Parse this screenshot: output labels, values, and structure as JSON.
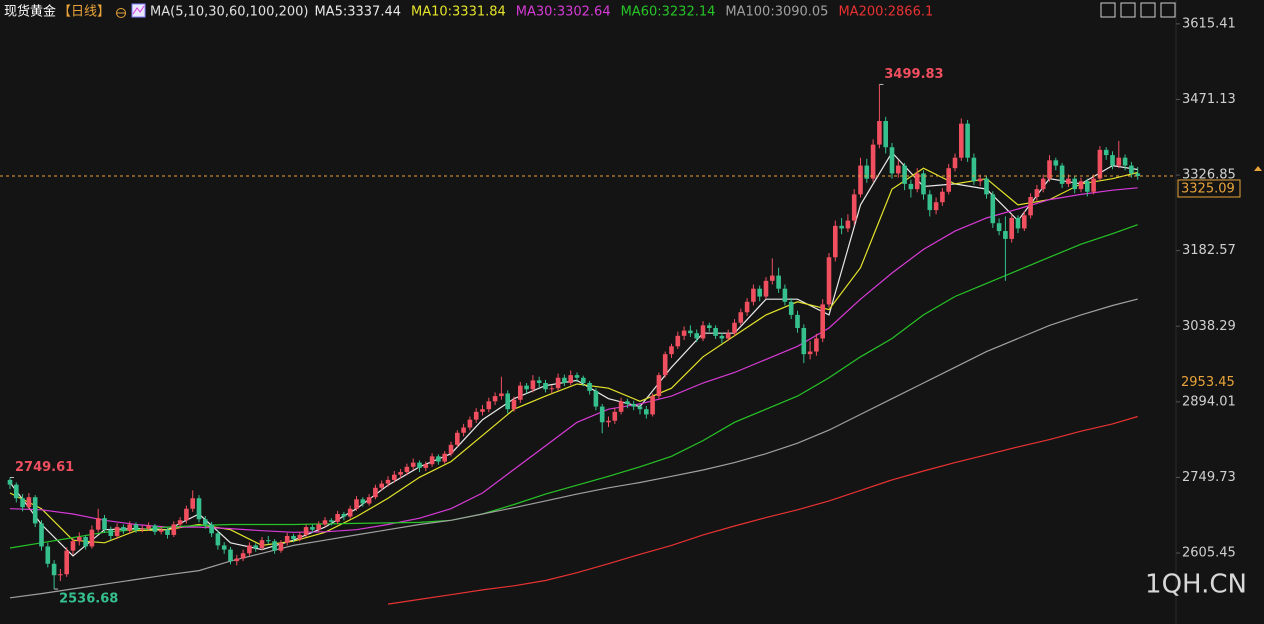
{
  "chart_data": {
    "type": "candlestick",
    "title": "现货黄金",
    "period": "【日线】",
    "ma_label": "MA(5,10,30,60,100,200)",
    "ylim": [
      2470,
      3661
    ],
    "yticks": [
      3615.41,
      3471.13,
      3326.85,
      3182.57,
      3038.29,
      2894.01,
      2749.73,
      2605.45
    ],
    "up_color": "#ef4f5f",
    "down_color": "#35c08e",
    "current_price": 3325.09,
    "marker_price": 2953.45,
    "annotations": [
      3499.83,
      2749.61,
      2536.68
    ],
    "watermark": "1QH.CN",
    "candles": [
      [
        2745,
        2749.61,
        2728,
        2736
      ],
      [
        2736,
        2740,
        2702,
        2710
      ],
      [
        2710,
        2718,
        2685,
        2693
      ],
      [
        2693,
        2720,
        2688,
        2712
      ],
      [
        2712,
        2716,
        2655,
        2662
      ],
      [
        2662,
        2668,
        2610,
        2618
      ],
      [
        2618,
        2625,
        2578,
        2585
      ],
      [
        2585,
        2592,
        2536.68,
        2563
      ],
      [
        2563,
        2575,
        2552,
        2565
      ],
      [
        2565,
        2616,
        2560,
        2610
      ],
      [
        2610,
        2634,
        2602,
        2628
      ],
      [
        2628,
        2645,
        2620,
        2636
      ],
      [
        2636,
        2640,
        2612,
        2618
      ],
      [
        2618,
        2658,
        2614,
        2650
      ],
      [
        2650,
        2690,
        2645,
        2672
      ],
      [
        2672,
        2678,
        2644,
        2650
      ],
      [
        2650,
        2656,
        2630,
        2638
      ],
      [
        2638,
        2662,
        2632,
        2655
      ],
      [
        2655,
        2660,
        2642,
        2648
      ],
      [
        2648,
        2666,
        2643,
        2660
      ],
      [
        2660,
        2664,
        2644,
        2650
      ],
      [
        2650,
        2658,
        2645,
        2652
      ],
      [
        2652,
        2664,
        2648,
        2658
      ],
      [
        2658,
        2661,
        2640,
        2646
      ],
      [
        2646,
        2656,
        2641,
        2650
      ],
      [
        2650,
        2654,
        2633,
        2640
      ],
      [
        2640,
        2666,
        2636,
        2660
      ],
      [
        2660,
        2674,
        2654,
        2668
      ],
      [
        2668,
        2696,
        2662,
        2690
      ],
      [
        2690,
        2725,
        2684,
        2710
      ],
      [
        2710,
        2716,
        2664,
        2670
      ],
      [
        2670,
        2676,
        2652,
        2660
      ],
      [
        2660,
        2665,
        2636,
        2643
      ],
      [
        2643,
        2648,
        2612,
        2620
      ],
      [
        2620,
        2626,
        2604,
        2612
      ],
      [
        2612,
        2617,
        2584,
        2590
      ],
      [
        2590,
        2602,
        2582,
        2595
      ],
      [
        2595,
        2612,
        2590,
        2605
      ],
      [
        2605,
        2626,
        2600,
        2620
      ],
      [
        2620,
        2624,
        2608,
        2615
      ],
      [
        2615,
        2636,
        2611,
        2630
      ],
      [
        2630,
        2638,
        2622,
        2628
      ],
      [
        2628,
        2632,
        2604,
        2610
      ],
      [
        2610,
        2630,
        2606,
        2625
      ],
      [
        2625,
        2644,
        2620,
        2638
      ],
      [
        2638,
        2642,
        2626,
        2632
      ],
      [
        2632,
        2646,
        2628,
        2640
      ],
      [
        2640,
        2660,
        2636,
        2655
      ],
      [
        2655,
        2660,
        2644,
        2650
      ],
      [
        2650,
        2666,
        2646,
        2660
      ],
      [
        2660,
        2674,
        2655,
        2668
      ],
      [
        2668,
        2672,
        2658,
        2665
      ],
      [
        2665,
        2686,
        2661,
        2680
      ],
      [
        2680,
        2684,
        2668,
        2675
      ],
      [
        2675,
        2696,
        2671,
        2690
      ],
      [
        2690,
        2714,
        2686,
        2708
      ],
      [
        2708,
        2712,
        2694,
        2700
      ],
      [
        2700,
        2718,
        2696,
        2712
      ],
      [
        2712,
        2736,
        2708,
        2730
      ],
      [
        2730,
        2744,
        2725,
        2738
      ],
      [
        2738,
        2752,
        2732,
        2745
      ],
      [
        2745,
        2762,
        2740,
        2755
      ],
      [
        2755,
        2766,
        2748,
        2760
      ],
      [
        2760,
        2776,
        2754,
        2770
      ],
      [
        2770,
        2786,
        2764,
        2778
      ],
      [
        2778,
        2782,
        2760,
        2768
      ],
      [
        2768,
        2780,
        2762,
        2775
      ],
      [
        2775,
        2796,
        2770,
        2790
      ],
      [
        2790,
        2794,
        2774,
        2780
      ],
      [
        2780,
        2800,
        2776,
        2795
      ],
      [
        2795,
        2818,
        2790,
        2812
      ],
      [
        2812,
        2840,
        2808,
        2835
      ],
      [
        2835,
        2852,
        2828,
        2845
      ],
      [
        2845,
        2866,
        2840,
        2860
      ],
      [
        2860,
        2882,
        2854,
        2875
      ],
      [
        2875,
        2888,
        2868,
        2880
      ],
      [
        2880,
        2902,
        2874,
        2895
      ],
      [
        2895,
        2912,
        2888,
        2905
      ],
      [
        2905,
        2942,
        2898,
        2910
      ],
      [
        2910,
        2916,
        2872,
        2880
      ],
      [
        2880,
        2904,
        2875,
        2898
      ],
      [
        2898,
        2932,
        2892,
        2925
      ],
      [
        2925,
        2930,
        2910,
        2918
      ],
      [
        2918,
        2945,
        2912,
        2935
      ],
      [
        2935,
        2942,
        2922,
        2930
      ],
      [
        2930,
        2936,
        2912,
        2918
      ],
      [
        2918,
        2926,
        2910,
        2920
      ],
      [
        2920,
        2948,
        2915,
        2940
      ],
      [
        2940,
        2946,
        2924,
        2930
      ],
      [
        2930,
        2954,
        2926,
        2945
      ],
      [
        2945,
        2950,
        2932,
        2940
      ],
      [
        2940,
        2944,
        2924,
        2930
      ],
      [
        2930,
        2934,
        2908,
        2915
      ],
      [
        2915,
        2920,
        2878,
        2885
      ],
      [
        2885,
        2890,
        2834,
        2855
      ],
      [
        2855,
        2866,
        2846,
        2858
      ],
      [
        2858,
        2882,
        2852,
        2875
      ],
      [
        2875,
        2902,
        2870,
        2895
      ],
      [
        2895,
        2900,
        2882,
        2890
      ],
      [
        2890,
        2896,
        2878,
        2885
      ],
      [
        2885,
        2890,
        2870,
        2880
      ],
      [
        2880,
        2886,
        2862,
        2870
      ],
      [
        2870,
        2910,
        2866,
        2905
      ],
      [
        2905,
        2950,
        2900,
        2945
      ],
      [
        2945,
        2990,
        2940,
        2985
      ],
      [
        2985,
        3005,
        2978,
        3000
      ],
      [
        3000,
        3028,
        2995,
        3020
      ],
      [
        3020,
        3038,
        3012,
        3030
      ],
      [
        3030,
        3040,
        3018,
        3025
      ],
      [
        3025,
        3032,
        3008,
        3015
      ],
      [
        3015,
        3048,
        3010,
        3040
      ],
      [
        3040,
        3045,
        3028,
        3035
      ],
      [
        3035,
        3040,
        3014,
        3020
      ],
      [
        3020,
        3026,
        3006,
        3015
      ],
      [
        3015,
        3032,
        3010,
        3025
      ],
      [
        3025,
        3052,
        3020,
        3045
      ],
      [
        3045,
        3072,
        3040,
        3065
      ],
      [
        3065,
        3092,
        3058,
        3085
      ],
      [
        3085,
        3118,
        3078,
        3110
      ],
      [
        3110,
        3116,
        3086,
        3095
      ],
      [
        3095,
        3132,
        3090,
        3125
      ],
      [
        3125,
        3168,
        3118,
        3135
      ],
      [
        3135,
        3150,
        3102,
        3110
      ],
      [
        3110,
        3118,
        3078,
        3085
      ],
      [
        3085,
        3092,
        3052,
        3060
      ],
      [
        3060,
        3068,
        3026,
        3035
      ],
      [
        3035,
        3042,
        2968,
        2985
      ],
      [
        2985,
        3010,
        2975,
        2990
      ],
      [
        2990,
        3024,
        2982,
        3015
      ],
      [
        3015,
        3090,
        3008,
        3080
      ],
      [
        3080,
        3178,
        3074,
        3170
      ],
      [
        3170,
        3240,
        3162,
        3230
      ],
      [
        3230,
        3245,
        3214,
        3225
      ],
      [
        3225,
        3252,
        3218,
        3240
      ],
      [
        3240,
        3300,
        3232,
        3290
      ],
      [
        3290,
        3360,
        3284,
        3345
      ],
      [
        3345,
        3358,
        3312,
        3320
      ],
      [
        3320,
        3395,
        3314,
        3385
      ],
      [
        3385,
        3499.83,
        3378,
        3430
      ],
      [
        3430,
        3438,
        3368,
        3380
      ],
      [
        3380,
        3388,
        3320,
        3330
      ],
      [
        3330,
        3355,
        3322,
        3345
      ],
      [
        3345,
        3350,
        3298,
        3310
      ],
      [
        3310,
        3318,
        3284,
        3300
      ],
      [
        3300,
        3340,
        3294,
        3330
      ],
      [
        3330,
        3336,
        3280,
        3290
      ],
      [
        3290,
        3298,
        3248,
        3260
      ],
      [
        3260,
        3284,
        3252,
        3275
      ],
      [
        3275,
        3302,
        3268,
        3295
      ],
      [
        3295,
        3348,
        3290,
        3340
      ],
      [
        3340,
        3368,
        3334,
        3360
      ],
      [
        3360,
        3435,
        3354,
        3425
      ],
      [
        3425,
        3432,
        3352,
        3360
      ],
      [
        3360,
        3368,
        3308,
        3315
      ],
      [
        3315,
        3328,
        3306,
        3320
      ],
      [
        3320,
        3326,
        3282,
        3290
      ],
      [
        3290,
        3296,
        3226,
        3235
      ],
      [
        3235,
        3244,
        3212,
        3220
      ],
      [
        3220,
        3248,
        3125,
        3205
      ],
      [
        3205,
        3252,
        3198,
        3245
      ],
      [
        3245,
        3250,
        3216,
        3225
      ],
      [
        3225,
        3258,
        3220,
        3250
      ],
      [
        3250,
        3292,
        3244,
        3285
      ],
      [
        3285,
        3308,
        3278,
        3300
      ],
      [
        3300,
        3328,
        3294,
        3320
      ],
      [
        3320,
        3365,
        3314,
        3355
      ],
      [
        3355,
        3360,
        3336,
        3345
      ],
      [
        3345,
        3350,
        3302,
        3310
      ],
      [
        3310,
        3328,
        3304,
        3320
      ],
      [
        3320,
        3326,
        3292,
        3300
      ],
      [
        3300,
        3322,
        3294,
        3315
      ],
      [
        3315,
        3320,
        3286,
        3295
      ],
      [
        3295,
        3328,
        3290,
        3320
      ],
      [
        3320,
        3382,
        3316,
        3375
      ],
      [
        3375,
        3380,
        3356,
        3365
      ],
      [
        3365,
        3372,
        3338,
        3345
      ],
      [
        3345,
        3392,
        3340,
        3360
      ],
      [
        3360,
        3366,
        3336,
        3345
      ],
      [
        3345,
        3352,
        3322,
        3330
      ],
      [
        3330,
        3342,
        3318,
        3325.09
      ]
    ],
    "ma_x": [
      0,
      5,
      10,
      15,
      20,
      25,
      30,
      35,
      40,
      45,
      50,
      55,
      60,
      65,
      70,
      75,
      80,
      85,
      90,
      95,
      100,
      105,
      110,
      115,
      120,
      125,
      130,
      135,
      140,
      145,
      150,
      155,
      160,
      165,
      170,
      175,
      179
    ],
    "series": [
      {
        "name": "MA5:3337.44",
        "color": "#e8e8e8",
        "values": [
          2740,
          2660,
          2600,
          2650,
          2652,
          2650,
          2680,
          2625,
          2612,
          2630,
          2655,
          2690,
          2735,
          2770,
          2795,
          2860,
          2900,
          2925,
          2935,
          2900,
          2885,
          2960,
          3025,
          3025,
          3090,
          3090,
          3060,
          3270,
          3370,
          3305,
          3310,
          3300,
          3240,
          3320,
          3310,
          3345,
          3337.44
        ]
      },
      {
        "name": "MA10:3331.84",
        "color": "#e3e32c",
        "values": [
          2720,
          2690,
          2630,
          2625,
          2648,
          2650,
          2660,
          2650,
          2620,
          2628,
          2645,
          2675,
          2710,
          2750,
          2780,
          2830,
          2880,
          2905,
          2928,
          2920,
          2895,
          2920,
          2980,
          3020,
          3060,
          3085,
          3070,
          3150,
          3300,
          3340,
          3310,
          3320,
          3270,
          3280,
          3310,
          3320,
          3331.84
        ]
      },
      {
        "name": "MA30:3302.64",
        "color": "#d63bd6",
        "values": [
          2690,
          2688,
          2680,
          2668,
          2660,
          2655,
          2655,
          2652,
          2648,
          2645,
          2646,
          2650,
          2660,
          2672,
          2690,
          2720,
          2765,
          2810,
          2855,
          2880,
          2890,
          2905,
          2930,
          2950,
          2975,
          3000,
          3035,
          3090,
          3140,
          3185,
          3220,
          3245,
          3262,
          3280,
          3290,
          3298,
          3302.64
        ]
      },
      {
        "name": "MA60:3232.14",
        "color": "#27c427",
        "values": [
          2615,
          2625,
          2635,
          2645,
          2650,
          2655,
          2658,
          2660,
          2660,
          2660,
          2661,
          2662,
          2663,
          2664,
          2668,
          2680,
          2698,
          2718,
          2735,
          2752,
          2770,
          2790,
          2820,
          2855,
          2880,
          2905,
          2940,
          2980,
          3015,
          3060,
          3095,
          3120,
          3145,
          3170,
          3195,
          3215,
          3232.14
        ]
      },
      {
        "name": "MA100:3090.05",
        "color": "#a0a0a0",
        "values": [
          2520,
          2528,
          2537,
          2546,
          2555,
          2564,
          2572,
          2590,
          2605,
          2620,
          2630,
          2640,
          2650,
          2660,
          2668,
          2680,
          2692,
          2705,
          2718,
          2730,
          2740,
          2752,
          2764,
          2778,
          2795,
          2815,
          2840,
          2870,
          2900,
          2930,
          2960,
          2990,
          3015,
          3040,
          3060,
          3078,
          3090.05
        ]
      },
      {
        "name": "MA200:2866.1",
        "color": "#e83232",
        "values": [
          null,
          null,
          null,
          null,
          null,
          null,
          null,
          null,
          null,
          null,
          null,
          null,
          2508,
          2517,
          2526,
          2535,
          2543,
          2553,
          2568,
          2585,
          2603,
          2620,
          2640,
          2657,
          2673,
          2688,
          2705,
          2725,
          2745,
          2762,
          2778,
          2793,
          2808,
          2822,
          2838,
          2852,
          2866.1
        ]
      }
    ]
  }
}
